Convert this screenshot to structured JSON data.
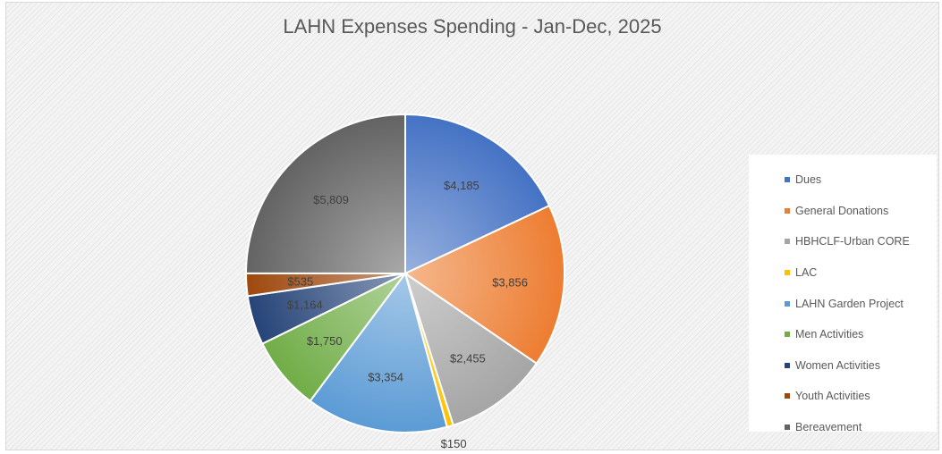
{
  "chart_data": {
    "type": "pie",
    "title": "LAHN Expenses Spending - Jan-Dec, 2025",
    "slices": [
      {
        "name": "Dues",
        "value": 4185,
        "label": "$4,185",
        "color": "#4472c4"
      },
      {
        "name": "General Donations",
        "value": 3856,
        "label": "$3,856",
        "color": "#ed7d31"
      },
      {
        "name": "HBHCLF-Urban CORE",
        "value": 2455,
        "label": "$2,455",
        "color": "#a5a5a5"
      },
      {
        "name": "LAC",
        "value": 150,
        "label": "$150",
        "color": "#ffc000"
      },
      {
        "name": "LAHN Garden Project",
        "value": 3354,
        "label": "$3,354",
        "color": "#5b9bd5"
      },
      {
        "name": "Men Activities",
        "value": 1750,
        "label": "$1,750",
        "color": "#70ad47"
      },
      {
        "name": "Women Activities",
        "value": 1164,
        "label": "$1,164",
        "color": "#264478"
      },
      {
        "name": "Youth Activities",
        "value": 535,
        "label": "$535",
        "color": "#9e480e"
      },
      {
        "name": "Bereavement",
        "value": 5809,
        "label": "$5,809",
        "color": "#636363"
      }
    ],
    "legend_position": "right"
  }
}
